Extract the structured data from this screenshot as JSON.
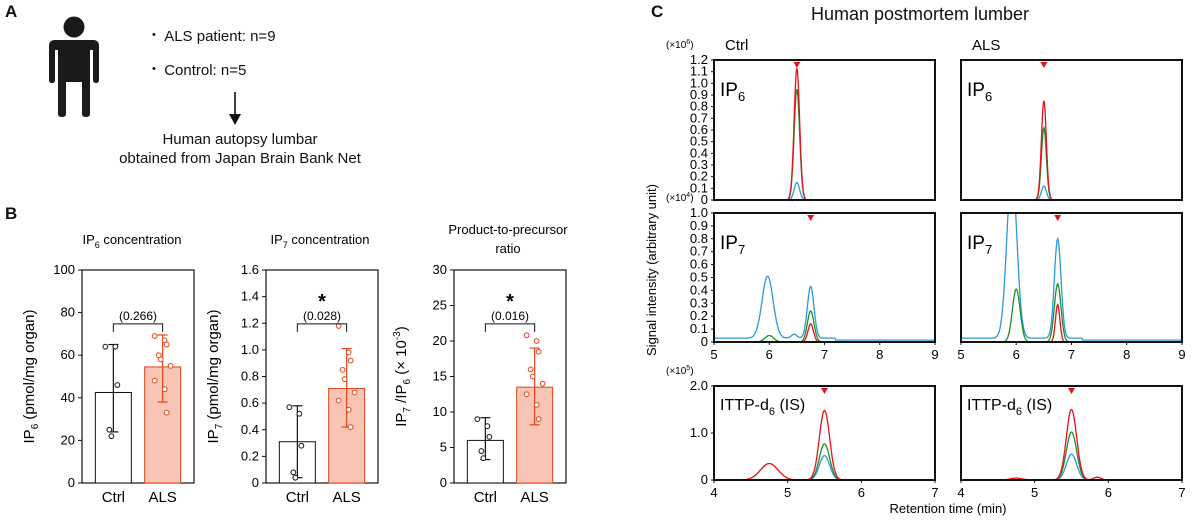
{
  "panel_a": {
    "letter": "A",
    "bullets": [
      "ALS patient: n=9",
      "Control: n=5"
    ],
    "result_line1": "Human autopsy lumbar",
    "result_line2": "obtained from Japan Brain Bank Net"
  },
  "panel_b": {
    "letter": "B"
  },
  "panel_c": {
    "letter": "C",
    "title": "Human postmortem lumber"
  },
  "colors": {
    "ctrl_bar": "#ffffff",
    "als_bar": "#f8c4b4",
    "als_edge": "#e0441e",
    "red": "#e3121b",
    "green": "#1f8f2a",
    "blue": "#2a9bd8"
  },
  "chart_data": [
    {
      "id": "b1",
      "type": "bar",
      "title": "IP",
      "title_sub": "6",
      "title_rest": " concentration",
      "ylabel": "IP",
      "ylabel_sub": "6",
      "ylabel_rest": " (pmol/mg organ)",
      "ylim": [
        0,
        100
      ],
      "yticks": [
        "0",
        "20",
        "40",
        "60",
        "80",
        "100"
      ],
      "categories": [
        "Ctrl",
        "ALS"
      ],
      "values": [
        42.5,
        54.5
      ],
      "err_low": [
        24,
        38
      ],
      "err_high": [
        65,
        69.5
      ],
      "points": [
        [
          64,
          64,
          46,
          25,
          22
        ],
        [
          69,
          67,
          65,
          60,
          58,
          55,
          48,
          44,
          33
        ]
      ],
      "bracket_label": "(0.266)",
      "significance": ""
    },
    {
      "id": "b2",
      "type": "bar",
      "title": "IP",
      "title_sub": "7",
      "title_rest": " concentration",
      "ylabel": "IP",
      "ylabel_sub": "7",
      "ylabel_rest": " (pmol/mg organ)",
      "ylim": [
        0,
        1.6
      ],
      "yticks": [
        "0",
        "0.2",
        "0.4",
        "0.6",
        "0.8",
        "1.0",
        "1.2",
        "1.4",
        "1.6"
      ],
      "categories": [
        "Ctrl",
        "ALS"
      ],
      "values": [
        0.31,
        0.71
      ],
      "err_low": [
        0.04,
        0.42
      ],
      "err_high": [
        0.58,
        1.01
      ],
      "points": [
        [
          0.57,
          0.52,
          0.28,
          0.08,
          0.04
        ],
        [
          1.18,
          0.98,
          0.92,
          0.85,
          0.78,
          0.68,
          0.62,
          0.55,
          0.42
        ]
      ],
      "bracket_label": "(0.028)",
      "significance": "*"
    },
    {
      "id": "b3",
      "type": "bar",
      "title": "Product-to-precursor",
      "title2": "ratio",
      "ylabel": "IP",
      "ylabel_sub": "7",
      "ylabel_mid": " /IP",
      "ylabel_sub2": "6",
      "ylabel_rest": " (× 10",
      "ylabel_sup": "-3",
      "ylabel_end": ")",
      "ylim": [
        0,
        30
      ],
      "yticks": [
        "0",
        "5",
        "10",
        "15",
        "20",
        "25",
        "30"
      ],
      "categories": [
        "Ctrl",
        "ALS"
      ],
      "values": [
        6.0,
        13.5
      ],
      "err_low": [
        3.3,
        8.2
      ],
      "err_high": [
        9.2,
        19.0
      ],
      "points": [
        [
          9.0,
          8.0,
          6.5,
          4.5,
          3.5
        ],
        [
          20.8,
          20.0,
          18.5,
          16.0,
          15.0,
          14.0,
          12.5,
          11.0,
          9.0
        ]
      ],
      "bracket_label": "(0.016)",
      "significance": "*"
    },
    {
      "id": "c",
      "type": "line",
      "ylabel": "Signal intensity (arbitrary unit)",
      "xlabel": "Retention time (min)",
      "columns": [
        "Ctrl",
        "ALS"
      ],
      "rows": [
        {
          "label": "IP",
          "label_sub": "6",
          "scale": "(×10",
          "scale_sup": "6",
          "scale_end": ")",
          "xlim": [
            5,
            9
          ],
          "xticks": [],
          "ylim": [
            0,
            1.2
          ],
          "yticks": [
            "0",
            "0.1",
            "0.2",
            "0.3",
            "0.4",
            "0.5",
            "0.6",
            "0.7",
            "0.8",
            "0.9",
            "1.0",
            "1.1",
            "1.2"
          ],
          "marker_x": 6.5,
          "panels": [
            {
              "series": [
                {
                  "name": "red",
                  "baseline": 0.0,
                  "peaks": [
                    [
                      6.5,
                      1.13,
                      0.05
                    ]
                  ]
                },
                {
                  "name": "green",
                  "baseline": 0.0,
                  "peaks": [
                    [
                      6.5,
                      0.95,
                      0.05
                    ]
                  ]
                },
                {
                  "name": "blue",
                  "baseline": 0.0,
                  "peaks": [
                    [
                      6.5,
                      0.15,
                      0.05
                    ]
                  ]
                }
              ]
            },
            {
              "series": [
                {
                  "name": "red",
                  "baseline": 0.0,
                  "peaks": [
                    [
                      6.5,
                      0.85,
                      0.045
                    ]
                  ]
                },
                {
                  "name": "green",
                  "baseline": 0.0,
                  "peaks": [
                    [
                      6.5,
                      0.62,
                      0.045
                    ]
                  ]
                },
                {
                  "name": "blue",
                  "baseline": 0.0,
                  "peaks": [
                    [
                      6.5,
                      0.12,
                      0.045
                    ]
                  ]
                }
              ]
            }
          ]
        },
        {
          "label": "IP",
          "label_sub": "7",
          "scale": "(×10",
          "scale_sup": "4",
          "scale_end": ")",
          "xlim": [
            5,
            9
          ],
          "xticks": [
            "5",
            "6",
            "7",
            "8",
            "9"
          ],
          "ylim": [
            0,
            1.0
          ],
          "yticks": [
            "0",
            "0.1",
            "0.2",
            "0.3",
            "0.4",
            "0.5",
            "0.6",
            "0.7",
            "0.8",
            "0.9",
            "1.0"
          ],
          "marker_x": 6.75,
          "panels": [
            {
              "series": [
                {
                  "name": "red",
                  "baseline": 0.0,
                  "peaks": [
                    [
                      6.75,
                      0.14,
                      0.05
                    ]
                  ]
                },
                {
                  "name": "green",
                  "baseline": 0.0,
                  "peaks": [
                    [
                      6.75,
                      0.24,
                      0.06
                    ],
                    [
                      6.0,
                      0.05,
                      0.08
                    ]
                  ]
                },
                {
                  "name": "blue",
                  "baseline": 0.03,
                  "peaks": [
                    [
                      5.97,
                      0.48,
                      0.1
                    ],
                    [
                      6.75,
                      0.4,
                      0.06
                    ],
                    [
                      6.45,
                      0.03,
                      0.05
                    ]
                  ]
                }
              ]
            },
            {
              "series": [
                {
                  "name": "red",
                  "baseline": 0.0,
                  "peaks": [
                    [
                      6.75,
                      0.29,
                      0.04
                    ]
                  ]
                },
                {
                  "name": "green",
                  "baseline": 0.0,
                  "peaks": [
                    [
                      6.0,
                      0.41,
                      0.07
                    ],
                    [
                      6.75,
                      0.45,
                      0.06
                    ]
                  ]
                },
                {
                  "name": "blue",
                  "baseline": 0.03,
                  "peaks": [
                    [
                      5.92,
                      1.3,
                      0.09
                    ],
                    [
                      6.75,
                      0.77,
                      0.06
                    ]
                  ]
                }
              ]
            }
          ]
        },
        {
          "label": "ITTP-d",
          "label_sub": "6",
          "label_rest": " (IS)",
          "scale": "(×10",
          "scale_sup": "5",
          "scale_end": ")",
          "xlim": [
            4,
            7
          ],
          "xticks": [
            "4",
            "5",
            "6",
            "7"
          ],
          "ylim": [
            0,
            2.0
          ],
          "yticks": [
            "0",
            "1.0",
            "2.0"
          ],
          "marker_x": 5.5,
          "panels": [
            {
              "series": [
                {
                  "name": "red",
                  "baseline": 0.0,
                  "peaks": [
                    [
                      5.5,
                      1.48,
                      0.07
                    ],
                    [
                      4.75,
                      0.35,
                      0.12
                    ]
                  ]
                },
                {
                  "name": "green",
                  "baseline": 0.0,
                  "peaks": [
                    [
                      5.5,
                      0.77,
                      0.07
                    ]
                  ]
                },
                {
                  "name": "blue",
                  "baseline": 0.0,
                  "peaks": [
                    [
                      5.5,
                      0.52,
                      0.07
                    ]
                  ]
                }
              ]
            },
            {
              "series": [
                {
                  "name": "red",
                  "baseline": 0.0,
                  "peaks": [
                    [
                      5.5,
                      1.5,
                      0.07
                    ],
                    [
                      4.75,
                      0.04,
                      0.08
                    ],
                    [
                      5.85,
                      0.06,
                      0.05
                    ]
                  ]
                },
                {
                  "name": "green",
                  "baseline": 0.0,
                  "peaks": [
                    [
                      5.5,
                      1.02,
                      0.07
                    ]
                  ]
                },
                {
                  "name": "blue",
                  "baseline": 0.0,
                  "peaks": [
                    [
                      5.5,
                      0.55,
                      0.07
                    ]
                  ]
                }
              ]
            }
          ]
        }
      ]
    }
  ]
}
